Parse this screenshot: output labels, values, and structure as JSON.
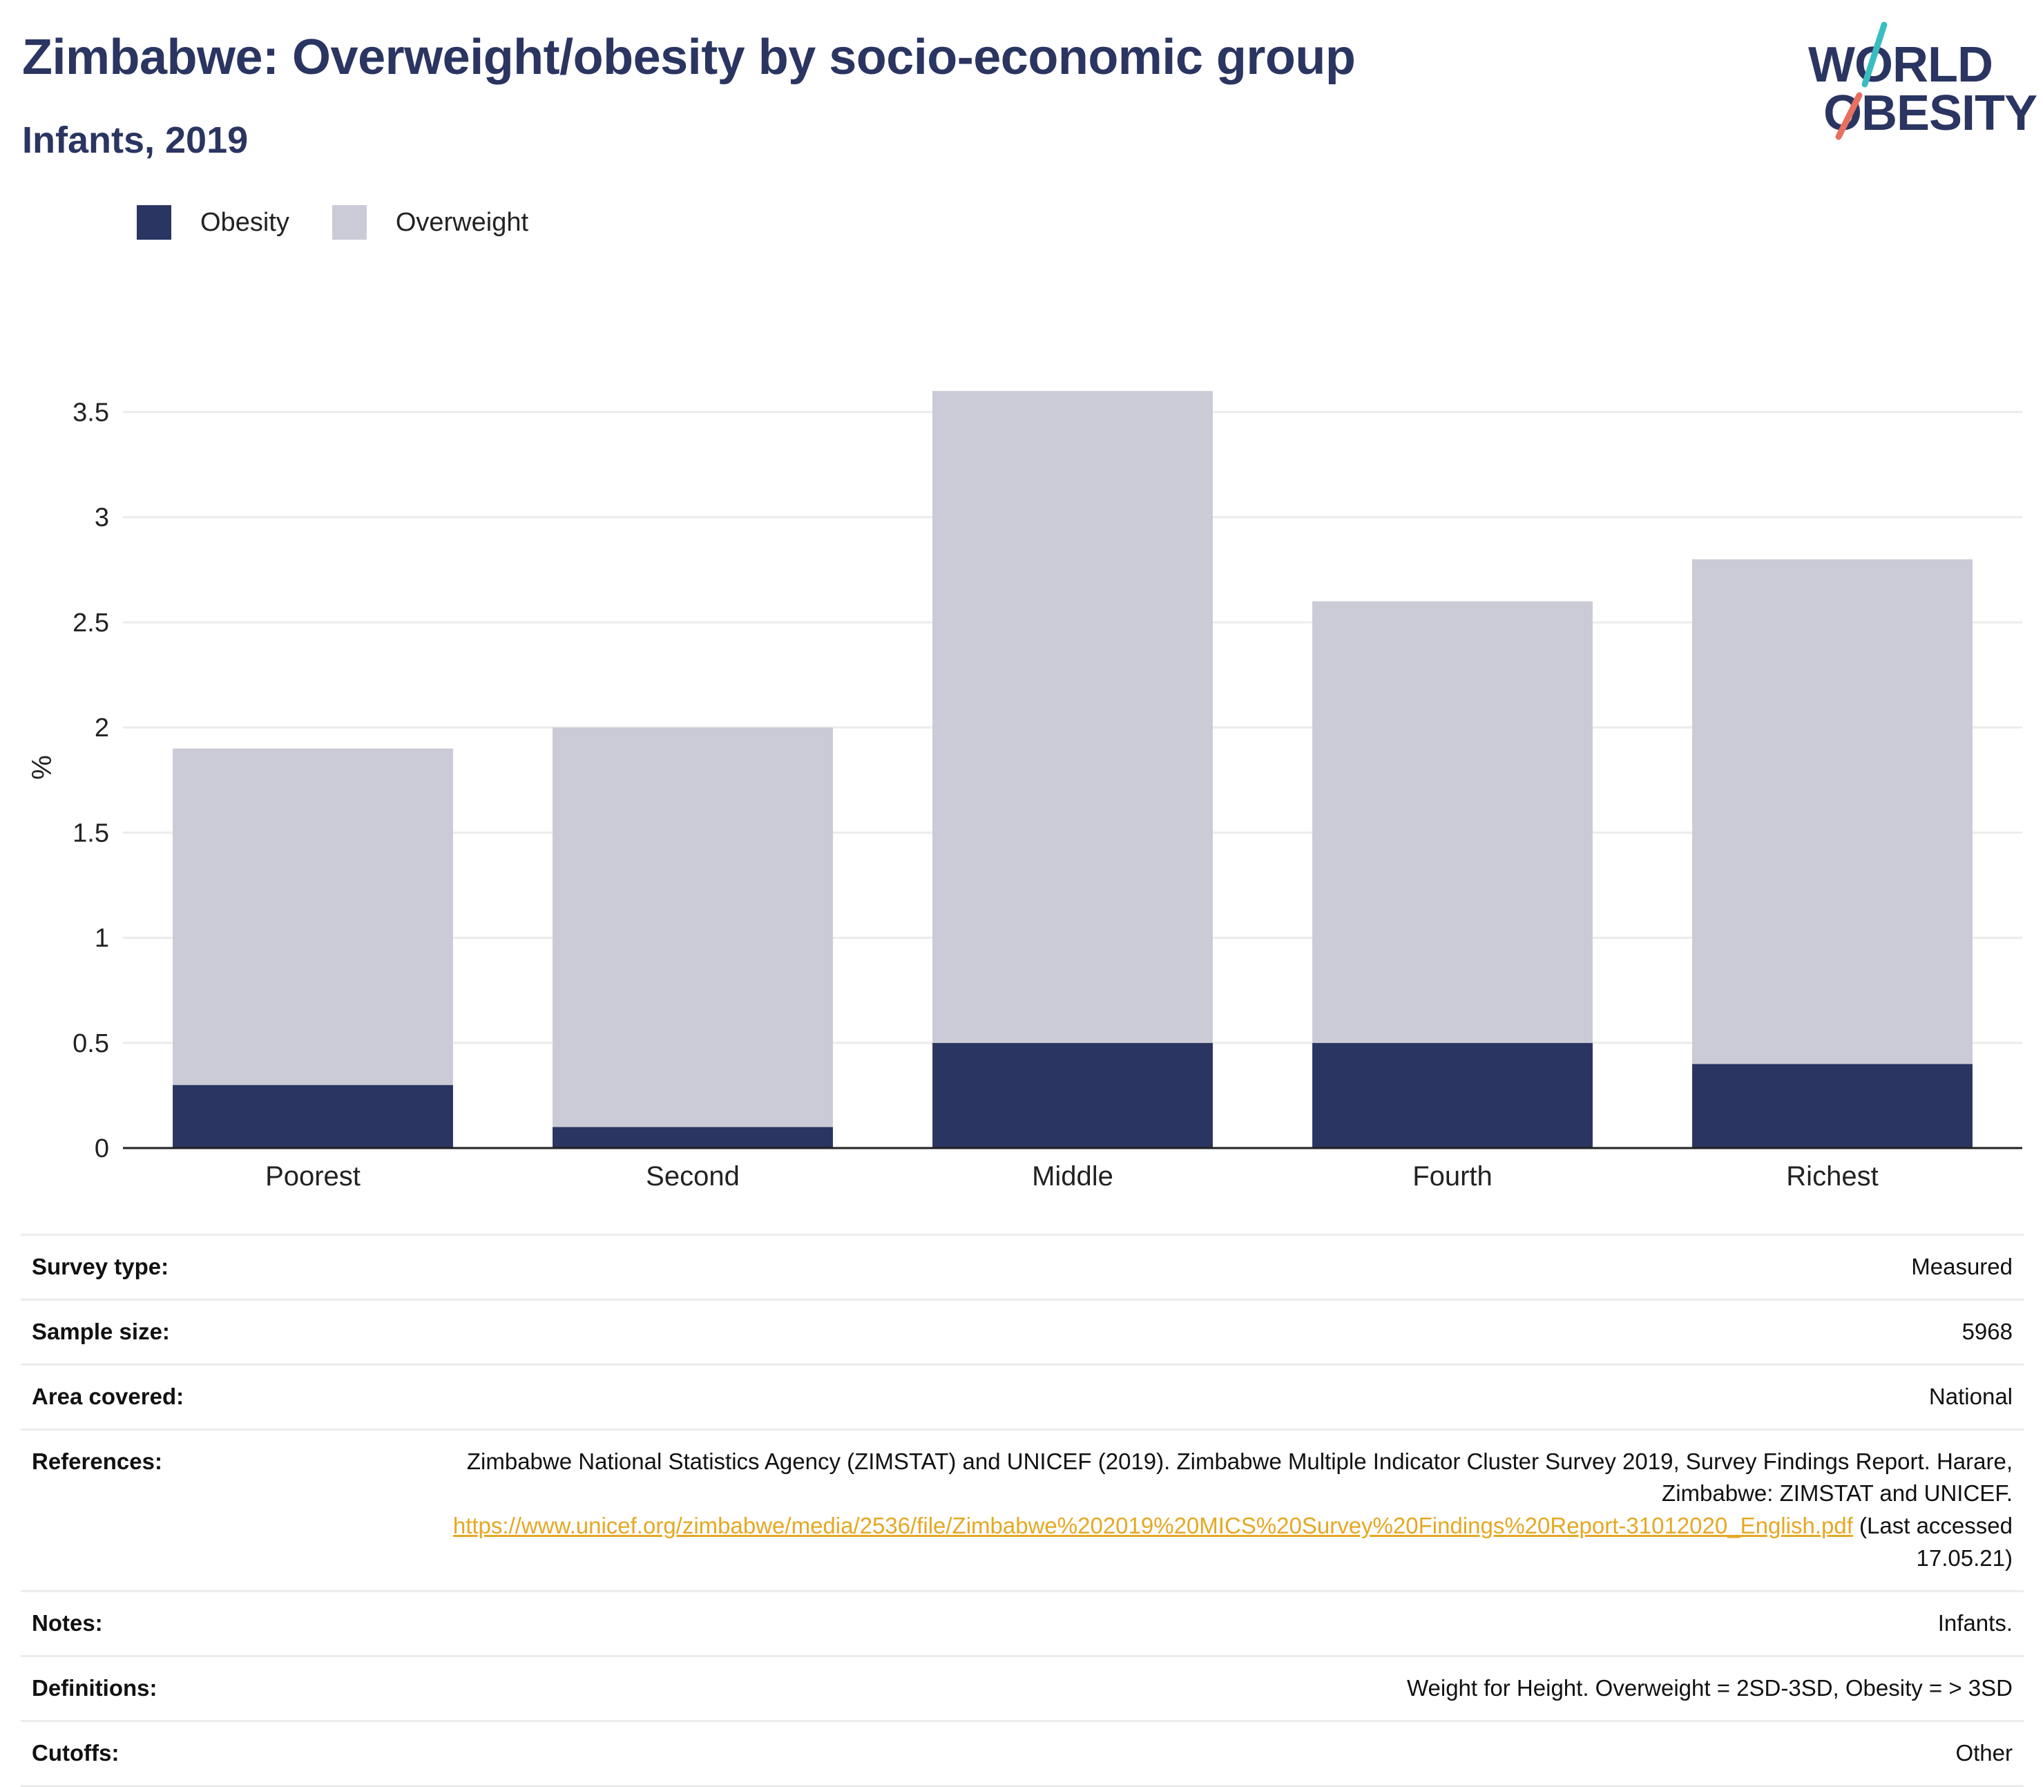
{
  "header": {
    "title": "Zimbabwe: Overweight/obesity by socio-economic group",
    "subtitle": "Infants, 2019"
  },
  "logo": {
    "line1": "WORLD",
    "line2": "OBESITY",
    "accent_teal": "#3bbdc0",
    "accent_coral": "#e8705f"
  },
  "colors": {
    "obesity": "#2a3561",
    "overweight": "#cacbd6",
    "axis": "#222222",
    "grid": "#ececec",
    "link": "#e5a823"
  },
  "chart_data": {
    "type": "bar",
    "stacked": true,
    "categories": [
      "Poorest",
      "Second",
      "Middle",
      "Fourth",
      "Richest"
    ],
    "series": [
      {
        "name": "Obesity",
        "values": [
          0.3,
          0.1,
          0.5,
          0.5,
          0.4
        ]
      },
      {
        "name": "Overweight",
        "values": [
          1.6,
          1.9,
          3.1,
          2.1,
          2.4
        ]
      }
    ],
    "ylabel": "%",
    "xlabel": "",
    "ylim": [
      0,
      3.62
    ],
    "yticks": [
      0,
      0.5,
      1,
      1.5,
      2,
      2.5,
      3,
      3.5
    ],
    "ytick_labels": [
      "0",
      "0.5",
      "1",
      "1.5",
      "2",
      "2.5",
      "3",
      "3.5"
    ],
    "grid": true,
    "legend_position": "top-left"
  },
  "info": [
    {
      "label": "Survey type:",
      "value": "Measured"
    },
    {
      "label": "Sample size:",
      "value": "5968"
    },
    {
      "label": "Area covered:",
      "value": "National"
    },
    {
      "label": "References:",
      "value_text": "Zimbabwe National Statistics Agency (ZIMSTAT) and UNICEF (2019). Zimbabwe Multiple Indicator Cluster Survey 2019, Survey Findings Report. Harare, Zimbabwe: ZIMSTAT and UNICEF.",
      "value_link": "https://www.unicef.org/zimbabwe/media/2536/file/Zimbabwe%202019%20MICS%20Survey%20Findings%20Report-31012020_English.pdf",
      "value_suffix": "(Last accessed 17.05.21)"
    },
    {
      "label": "Notes:",
      "value": "Infants."
    },
    {
      "label": "Definitions:",
      "value": "Weight for Height. Overweight = 2SD-3SD, Obesity = > 3SD"
    },
    {
      "label": "Cutoffs:",
      "value": "Other"
    }
  ]
}
